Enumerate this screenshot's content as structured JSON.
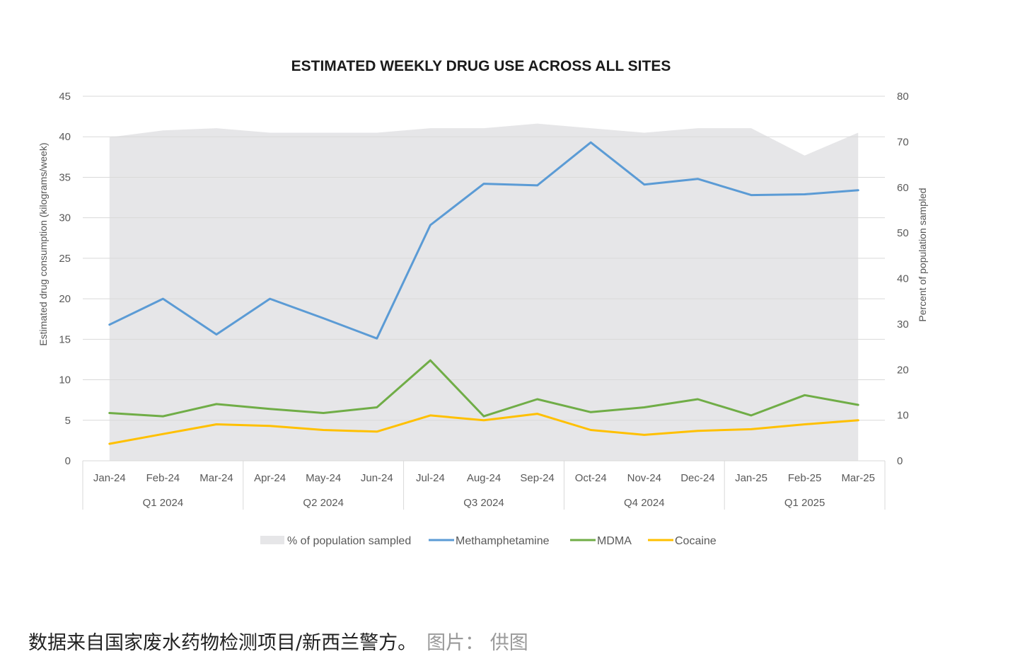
{
  "chart_data": {
    "type": "line",
    "title": "ESTIMATED WEEKLY DRUG USE ACROSS ALL SITES",
    "ylabel": "Estimated drug consumption (kilograms/week)",
    "y2label": "Percent of population sampled",
    "ylim": [
      0,
      45
    ],
    "yticks": [
      0,
      5,
      10,
      15,
      20,
      25,
      30,
      35,
      40,
      45
    ],
    "y2lim": [
      0,
      80
    ],
    "y2ticks": [
      0,
      10,
      20,
      30,
      40,
      50,
      60,
      70,
      80
    ],
    "grid": true,
    "legend_position": "bottom",
    "categories": [
      "Jan-24",
      "Feb-24",
      "Mar-24",
      "Apr-24",
      "May-24",
      "Jun-24",
      "Jul-24",
      "Aug-24",
      "Sep-24",
      "Oct-24",
      "Nov-24",
      "Dec-24",
      "Jan-25",
      "Feb-25",
      "Mar-25"
    ],
    "groups": [
      {
        "label": "Q1 2024",
        "count": 3
      },
      {
        "label": "Q2 2024",
        "count": 3
      },
      {
        "label": "Q3 2024",
        "count": 3
      },
      {
        "label": "Q4 2024",
        "count": 3
      },
      {
        "label": "Q1 2025",
        "count": 3
      }
    ],
    "area_series": {
      "name": "% of population sampled",
      "axis": "right",
      "color": "#e6e6e8",
      "values": [
        71,
        72.5,
        73,
        72,
        72,
        72,
        73,
        73,
        74,
        73,
        72,
        73,
        73,
        67,
        72
      ]
    },
    "series": [
      {
        "name": "Methamphetamine",
        "color": "#5b9bd5",
        "values": [
          16.8,
          20,
          15.6,
          20,
          17.6,
          15.1,
          29.1,
          34.2,
          34,
          39.3,
          34.1,
          34.8,
          32.8,
          32.9,
          33.4
        ]
      },
      {
        "name": "MDMA",
        "color": "#70ad47",
        "values": [
          5.9,
          5.5,
          7,
          6.4,
          5.9,
          6.6,
          12.4,
          5.5,
          7.6,
          6,
          6.6,
          7.6,
          5.6,
          8.1,
          6.9
        ]
      },
      {
        "name": "Cocaine",
        "color": "#ffc000",
        "values": [
          2.1,
          3.3,
          4.5,
          4.3,
          3.8,
          3.6,
          5.6,
          5,
          5.8,
          3.8,
          3.2,
          3.7,
          3.9,
          4.5,
          5
        ]
      }
    ]
  },
  "caption": {
    "text": "数据来自国家废水药物检测项目/新西兰警方。",
    "credit": "图片：  供图"
  }
}
